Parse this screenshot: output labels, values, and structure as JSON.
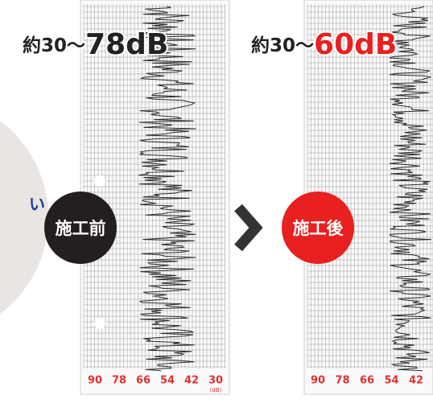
{
  "headings": [
    {
      "prefix": "約30〜",
      "value": "78dB"
    },
    {
      "prefix": "約30〜",
      "value": "60dB"
    }
  ],
  "badges": [
    "施工前",
    "施工後"
  ],
  "side_text": "い",
  "scales": [
    {
      "ticks": [
        "90",
        "78",
        "66",
        "54",
        "42",
        "30"
      ],
      "unit": "(dB)"
    },
    {
      "ticks": [
        "90",
        "78",
        "66",
        "54",
        "42"
      ]
    }
  ]
}
